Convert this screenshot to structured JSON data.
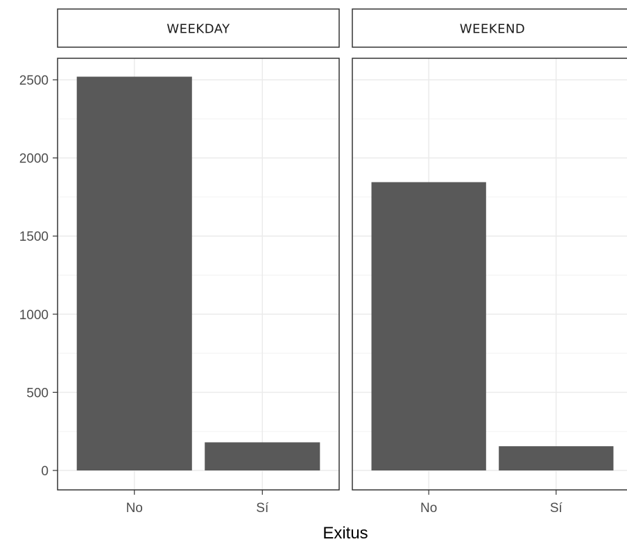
{
  "chart_data": {
    "type": "bar",
    "facets": [
      "WEEKDAY",
      "WEEKEND"
    ],
    "categories": [
      "No",
      "Sí"
    ],
    "series": [
      {
        "facet": "WEEKDAY",
        "values": [
          2520,
          180
        ]
      },
      {
        "facet": "WEEKEND",
        "values": [
          1845,
          155
        ]
      }
    ],
    "xlabel": "Exitus",
    "ylabel": "",
    "ylim": [
      0,
      2650
    ],
    "yticks": [
      0,
      500,
      1000,
      1500,
      2000,
      2500
    ],
    "ytick_labels": [
      "0",
      "500",
      "1000",
      "1500",
      "2000",
      "2500"
    ],
    "grid": true,
    "bar_color": "#595959",
    "grid_color": "#ebebeb",
    "panel_border_color": "#333333"
  }
}
